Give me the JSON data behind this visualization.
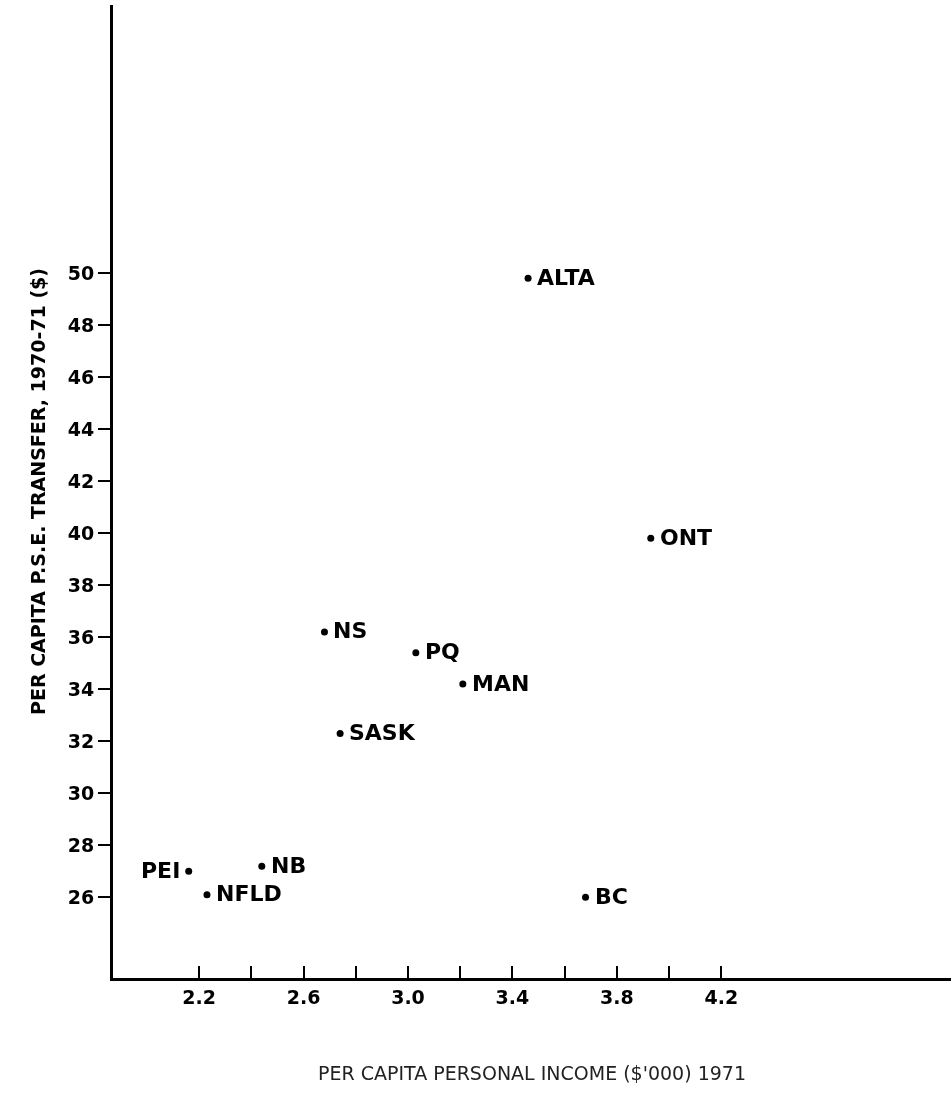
{
  "chart_data": {
    "type": "scatter",
    "xlabel": "PER CAPITA PERSONAL INCOME ($'000) 1971",
    "ylabel": "PER CAPITA P.S.E. TRANSFER, 1970-71 ($)",
    "x": [
      2.16,
      2.23,
      2.44,
      2.68,
      3.03,
      3.21,
      2.74,
      3.46,
      3.93,
      3.68
    ],
    "series": [
      {
        "color": "#000000",
        "values": [
          27.0,
          26.1,
          27.2,
          36.2,
          35.4,
          34.2,
          32.3,
          49.8,
          39.8,
          26.0
        ]
      }
    ],
    "annotations": [
      {
        "text": "PEI",
        "x": 2.16,
        "y": 27.0
      },
      {
        "text": "NFLD",
        "x": 2.23,
        "y": 26.1
      },
      {
        "text": "NB",
        "x": 2.44,
        "y": 27.2
      },
      {
        "text": "NS",
        "x": 2.68,
        "y": 36.2
      },
      {
        "text": "PQ",
        "x": 3.03,
        "y": 35.4
      },
      {
        "text": "MAN",
        "x": 3.21,
        "y": 34.2
      },
      {
        "text": "SASK",
        "x": 2.74,
        "y": 32.3
      },
      {
        "text": "ALTA",
        "x": 3.46,
        "y": 49.8
      },
      {
        "text": "ONT",
        "x": 3.93,
        "y": 39.8
      },
      {
        "text": "BC",
        "x": 3.68,
        "y": 26.0
      }
    ],
    "xlim": [
      1.87,
      5.08
    ],
    "xticks": [
      2.2,
      {
        "value": 2.4,
        "label": null
      },
      2.6,
      {
        "value": 2.8,
        "label": null
      },
      {
        "value": 3.0,
        "label": "3.0"
      },
      {
        "value": 3.2,
        "label": null
      },
      3.4,
      {
        "value": 3.6,
        "label": null
      },
      3.8,
      {
        "value": 4.0,
        "label": null
      },
      4.2
    ],
    "ylim": [
      22.9,
      60.3
    ],
    "yticks": [
      26,
      28,
      30,
      32,
      34,
      36,
      38,
      40,
      42,
      44,
      46,
      48,
      50
    ],
    "marker": "circle"
  }
}
